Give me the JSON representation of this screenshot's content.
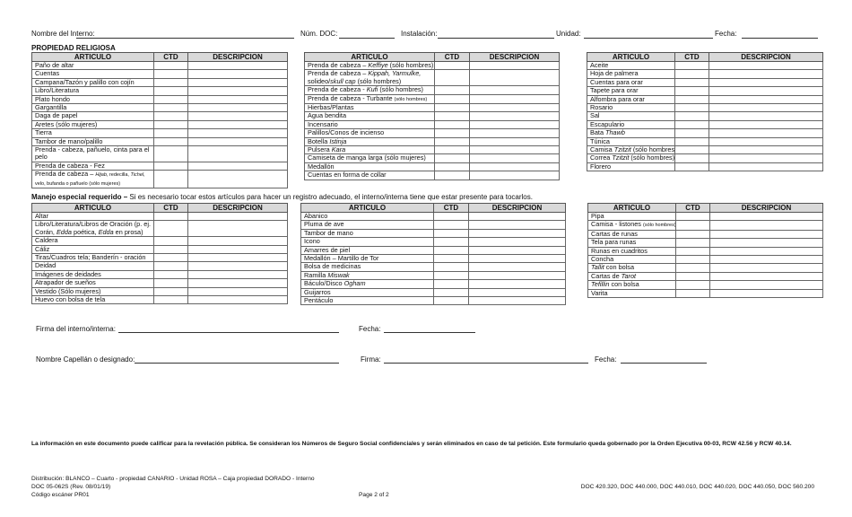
{
  "header": {
    "nombre_label": "Nombre del Interno:",
    "doc_label": "Núm. DOC:",
    "instalacion_label": "Instalación:",
    "unidad_label": "Unidad:",
    "fecha_label": "Fecha:"
  },
  "section1": {
    "title": "PROPIEDAD RELIGIOSA"
  },
  "columns": [
    "ARTICULO",
    "CTD",
    "DESCRIPCION"
  ],
  "section2": {
    "title_bold": "Manejo especial requerido –",
    "title_rest": " Si es necesario tocar estos artículos para hacer un registro adecuado, el interno/interna tiene que estar presente para tocarlos."
  },
  "tables": [
    {
      "items": [
        [
          {
            "t": "Paño de altar"
          }
        ],
        [
          {
            "t": "Cuentas"
          }
        ],
        [
          {
            "t": "Campana/Tazón y palillo con cojín"
          }
        ],
        [
          {
            "t": "Libro/Literatura"
          }
        ],
        [
          {
            "t": "Plato hondo"
          }
        ],
        [
          {
            "t": "Gargantilla"
          }
        ],
        [
          {
            "t": "Daga de papel"
          }
        ],
        [
          {
            "t": "Aretes (sólo mujeres)"
          }
        ],
        [
          {
            "t": "Tierra"
          }
        ],
        [
          {
            "t": "Tambor de mano/palillo"
          }
        ],
        [
          {
            "t": "Prenda - cabeza, pañuelo, cinta para el pelo"
          }
        ],
        [
          {
            "t": "Prenda de cabeza - Fez"
          }
        ],
        [
          {
            "t": "Prenda de cabeza – "
          },
          {
            "t": "Hijab,",
            "i": 1,
            "s": 1
          },
          {
            "t": " redecilla, ",
            "s": 1
          },
          {
            "t": "Tichel,",
            "i": 1,
            "s": 1
          },
          {
            "t": " velo, bufanda o pañuelo (sólo mujeres)",
            "s": 1
          }
        ]
      ]
    },
    {
      "items": [
        [
          {
            "t": "Prenda de cabeza – "
          },
          {
            "t": "Keffiye",
            "i": 1
          },
          {
            "t": " (sólo hombres)"
          }
        ],
        [
          {
            "t": "Prenda de cabeza – "
          },
          {
            "t": "Kippah, Yarmulke,",
            "i": 1
          },
          {
            "t": " solideo/"
          },
          {
            "t": "skull cap",
            "i": 1
          },
          {
            "t": "  (sólo hombres)"
          }
        ],
        [
          {
            "t": "Prenda de cabeza - "
          },
          {
            "t": "Kufi",
            "i": 1
          },
          {
            "t": " (sólo hombres)"
          }
        ],
        [
          {
            "t": "Prenda de cabeza - Turbante "
          },
          {
            "t": "(sólo hombres)",
            "s": 1
          }
        ],
        [
          {
            "t": "Hierbas/Plantas"
          }
        ],
        [
          {
            "t": "Agua bendita"
          }
        ],
        [
          {
            "t": "Incensario"
          }
        ],
        [
          {
            "t": "Palillos/Conos de incienso"
          }
        ],
        [
          {
            "t": "Botella "
          },
          {
            "t": "Istinja",
            "i": 1
          }
        ],
        [
          {
            "t": "Pulsera "
          },
          {
            "t": "Kara",
            "i": 1
          }
        ],
        [
          {
            "t": "Camiseta de manga larga (sólo mujeres)"
          }
        ],
        [
          {
            "t": "Medallón"
          }
        ],
        [
          {
            "t": "Cuentas en forma de collar"
          }
        ]
      ]
    },
    {
      "items": [
        [
          {
            "t": "Aceite"
          }
        ],
        [
          {
            "t": "Hoja de palmera"
          }
        ],
        [
          {
            "t": "Cuentas para orar"
          }
        ],
        [
          {
            "t": "Tapete para orar"
          }
        ],
        [
          {
            "t": "Alfombra para orar"
          }
        ],
        [
          {
            "t": "Rosario"
          }
        ],
        [
          {
            "t": "Sal"
          }
        ],
        [
          {
            "t": "Escapulario"
          }
        ],
        [
          {
            "t": "Bata "
          },
          {
            "t": "Thawb",
            "i": 1
          }
        ],
        [
          {
            "t": "Túnica"
          }
        ],
        [
          {
            "t": "Camisa "
          },
          {
            "t": "Tzitzit",
            "i": 1
          },
          {
            "t": " (sólo hombres)"
          }
        ],
        [
          {
            "t": "Correa "
          },
          {
            "t": "Tzitzit",
            "i": 1
          },
          {
            "t": " (sólo hombres)"
          }
        ],
        [
          {
            "t": "Florero"
          }
        ]
      ]
    },
    {
      "items": [
        [
          {
            "t": "Altar"
          }
        ],
        [
          {
            "t": "Libro/Literatura/Libros de Oración (p. ej. Corán, "
          },
          {
            "t": "Edda",
            "i": 1
          },
          {
            "t": " poética, "
          },
          {
            "t": "Edda",
            "i": 1
          },
          {
            "t": " en prosa)"
          }
        ],
        [
          {
            "t": "Caldera"
          }
        ],
        [
          {
            "t": "Cáliz"
          }
        ],
        [
          {
            "t": "Tiras/Cuadros tela; Banderín - oración"
          }
        ],
        [
          {
            "t": "Deidad"
          }
        ],
        [
          {
            "t": "Imágenes de deidades"
          }
        ],
        [
          {
            "t": "Atrapador de sueños"
          }
        ],
        [
          {
            "t": "Vestido (Sólo mujeres)"
          }
        ],
        [
          {
            "t": "Huevo con bolsa de tela"
          }
        ]
      ]
    },
    {
      "items": [
        [
          {
            "t": "Abanico"
          }
        ],
        [
          {
            "t": "Pluma de ave"
          }
        ],
        [
          {
            "t": "Tambor de mano"
          }
        ],
        [
          {
            "t": "Icono"
          }
        ],
        [
          {
            "t": "Amarres de piel"
          }
        ],
        [
          {
            "t": "Medallón – Martillo de Tor"
          }
        ],
        [
          {
            "t": "Bolsa de medicinas"
          }
        ],
        [
          {
            "t": "Ramilla "
          },
          {
            "t": "Miswak",
            "i": 1
          }
        ],
        [
          {
            "t": "Báculo/Disco "
          },
          {
            "t": "Ogham",
            "i": 1
          }
        ],
        [
          {
            "t": "Guijarros"
          }
        ],
        [
          {
            "t": "Pentáculo"
          }
        ]
      ]
    },
    {
      "items": [
        [
          {
            "t": "Pipa"
          }
        ],
        [
          {
            "t": "Camisa - listones "
          },
          {
            "t": "(sólo hombres)",
            "s": 1
          }
        ],
        [
          {
            "t": "Cartas de runas"
          }
        ],
        [
          {
            "t": "Tela para runas"
          }
        ],
        [
          {
            "t": "Runas en cuadritos"
          }
        ],
        [
          {
            "t": "Concha"
          }
        ],
        [
          {
            "t": "Tallit",
            "i": 1
          },
          {
            "t": " con bolsa"
          }
        ],
        [
          {
            "t": "Cartas de "
          },
          {
            "t": "Tarot",
            "i": 1
          }
        ],
        [
          {
            "t": "Tefillin",
            "i": 1
          },
          {
            "t": " con bolsa"
          }
        ],
        [
          {
            "t": "Varita"
          }
        ]
      ]
    }
  ],
  "signatures": {
    "firma_interno": "Firma del interno/interna:",
    "fecha1": "Fecha:",
    "capellan": "Nombre Capellán o designado:",
    "firma": "Firma:",
    "fecha2": "Fecha:"
  },
  "footer": {
    "disclosure": "La información en este documento puede calificar para la revelación pública.  Se consideran los Números de Seguro Social confidenciales y serán eliminados en caso de tal petición.  Este formulario queda gobernado por la Orden Ejecutiva 00-03, RCW 42.56 y RCW 40.14.",
    "distribution": "Distribución:  BLANCO – Cuarto - propiedad  CANARIO - Unidad  ROSA – Caja propiedad  DORADO - Interno",
    "form_number": "DOC 05-062S (Rev. 08/01/19)",
    "scanner_code": "Código escáner PR01",
    "page": "Page 2 of 2",
    "references": "DOC 420.320, DOC 440.000, DOC 440.010, DOC 440.020, DOC 440.050, DOC 560.200"
  }
}
